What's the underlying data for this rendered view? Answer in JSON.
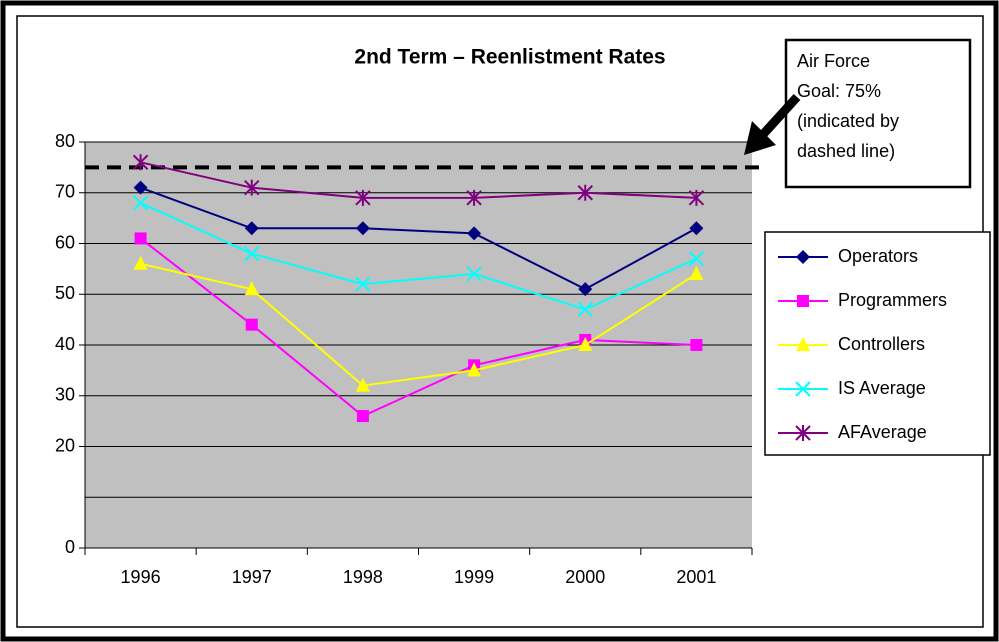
{
  "chart_data": {
    "type": "line",
    "title": "2nd Term – Reenlistment Rates",
    "categories": [
      "1996",
      "1997",
      "1998",
      "1999",
      "2000",
      "2001"
    ],
    "series": [
      {
        "name": "Operators",
        "color": "#000080",
        "marker": "diamond",
        "values": [
          71,
          63,
          63,
          62,
          51,
          63
        ]
      },
      {
        "name": "Programmers",
        "color": "#ff00ff",
        "marker": "square",
        "values": [
          61,
          44,
          26,
          36,
          41,
          40
        ]
      },
      {
        "name": "Controllers",
        "color": "#ffff00",
        "marker": "triangle",
        "values": [
          56,
          51,
          32,
          35,
          40,
          54
        ]
      },
      {
        "name": "IS Average",
        "color": "#00ffff",
        "marker": "x",
        "values": [
          68,
          58,
          52,
          54,
          47,
          57
        ]
      },
      {
        "name": "AFAverage",
        "color": "#800080",
        "marker": "star",
        "values": [
          76,
          71,
          69,
          69,
          70,
          69
        ]
      }
    ],
    "ylim": [
      0,
      80
    ],
    "yticks": [
      0,
      20,
      30,
      40,
      50,
      60,
      70,
      80
    ],
    "ygrid": [
      10,
      20,
      30,
      40,
      50,
      60,
      70,
      80
    ],
    "goal": 75,
    "annotation": [
      "Air Force",
      "Goal: 75%",
      "(indicated by",
      "dashed line)"
    ],
    "legend": "right"
  }
}
